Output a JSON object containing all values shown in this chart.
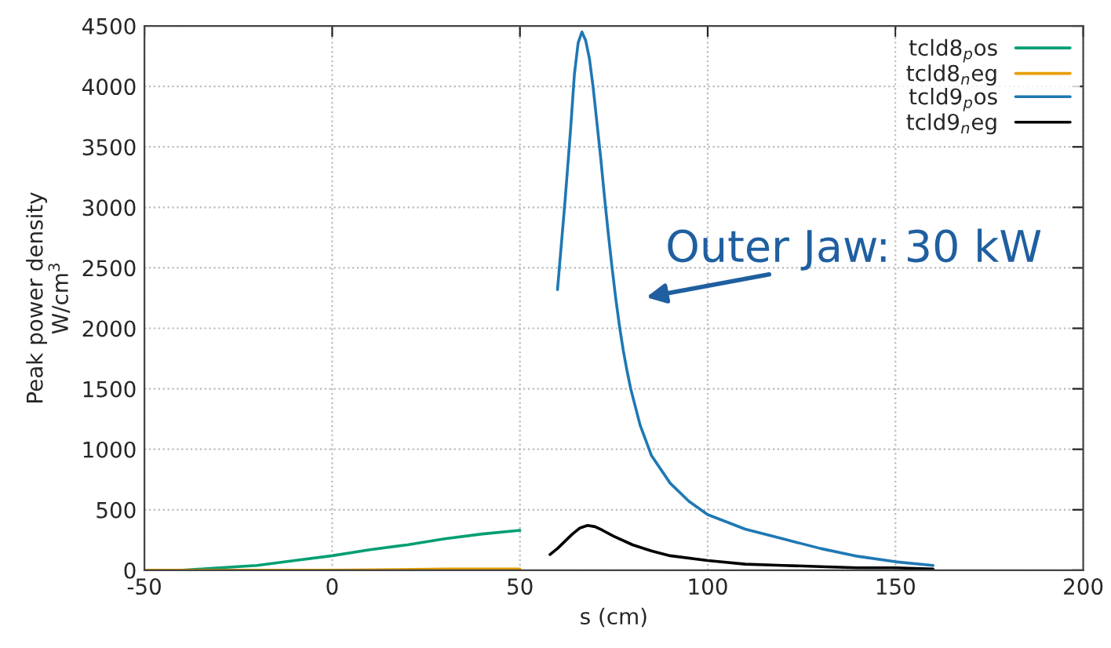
{
  "chart_data": {
    "type": "line",
    "xlabel": "s (cm)",
    "ylabel": "Peak power density\nW/cm$^{3}$",
    "xlim": [
      -50,
      200
    ],
    "xticks": [
      -50,
      0,
      50,
      100,
      150,
      200
    ],
    "ylim": [
      0,
      4500
    ],
    "yticks": [
      0,
      500,
      1000,
      1500,
      2000,
      2500,
      3000,
      3500,
      4000,
      4500
    ],
    "grid": true,
    "legend": "top right",
    "line_style": "solid",
    "annotations": [
      "Outer Jaw: 30 kW"
    ],
    "series": [
      {
        "name": "tcld8$_{p}$os",
        "color": "#009e73",
        "x": [
          -50,
          -40,
          -30,
          -20,
          -10,
          0,
          10,
          20,
          30,
          40,
          50
        ],
        "values": [
          0,
          0,
          20,
          40,
          80,
          120,
          170,
          210,
          260,
          300,
          330
        ]
      },
      {
        "name": "tcld8$_{n}$eg",
        "color": "#e69f00",
        "x": [
          -50,
          -30,
          0,
          30,
          50
        ],
        "values": [
          0,
          0,
          0,
          10,
          10
        ]
      },
      {
        "name": "tcld9$_{p}$os",
        "color": "#1f78b4",
        "x": [
          60,
          62,
          63.5,
          64.5,
          65.5,
          66.5,
          67.5,
          68.5,
          69.5,
          70.5,
          71.5,
          72.5,
          73.5,
          74.5,
          75.5,
          76.5,
          77.5,
          78.5,
          79.5,
          80.5,
          82,
          85,
          90,
          95,
          100,
          110,
          120,
          130,
          140,
          150,
          160
        ],
        "values": [
          2320,
          3050,
          3650,
          4100,
          4360,
          4450,
          4380,
          4230,
          3990,
          3700,
          3410,
          3090,
          2790,
          2510,
          2250,
          2020,
          1820,
          1650,
          1500,
          1380,
          1200,
          950,
          720,
          570,
          460,
          340,
          260,
          180,
          115,
          70,
          40
        ]
      },
      {
        "name": "tcld9$_{n}$eg",
        "color": "#000000",
        "x": [
          58,
          60,
          62,
          64,
          66,
          68,
          70,
          72,
          75,
          80,
          85,
          90,
          100,
          110,
          120,
          130,
          140,
          150,
          160
        ],
        "values": [
          130,
          180,
          240,
          300,
          350,
          370,
          360,
          330,
          280,
          210,
          160,
          120,
          80,
          50,
          40,
          30,
          20,
          20,
          10
        ]
      }
    ]
  }
}
